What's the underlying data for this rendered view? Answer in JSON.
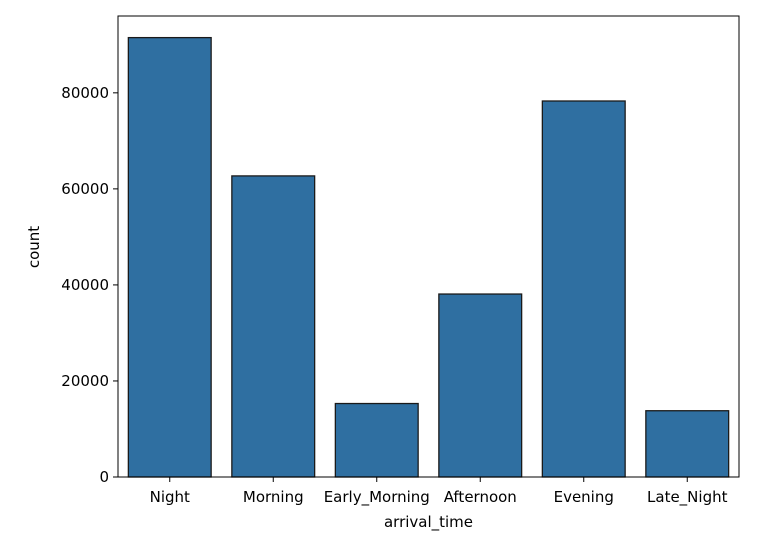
{
  "chart_data": {
    "type": "bar",
    "title": "",
    "xlabel": "arrival_time",
    "ylabel": "count",
    "categories": [
      "Night",
      "Morning",
      "Early_Morning",
      "Afternoon",
      "Evening",
      "Late_Night"
    ],
    "values": [
      91500,
      62700,
      15300,
      38100,
      78300,
      13800
    ],
    "ylim": [
      0,
      96000
    ],
    "yticks": [
      0,
      20000,
      40000,
      60000,
      80000
    ],
    "ytick_labels": [
      "0",
      "20000",
      "40000",
      "60000",
      "80000"
    ],
    "grid": false,
    "legend": "none",
    "bar_color": "#2f6fa1",
    "bar_edge_color": "#1a1a1a"
  }
}
